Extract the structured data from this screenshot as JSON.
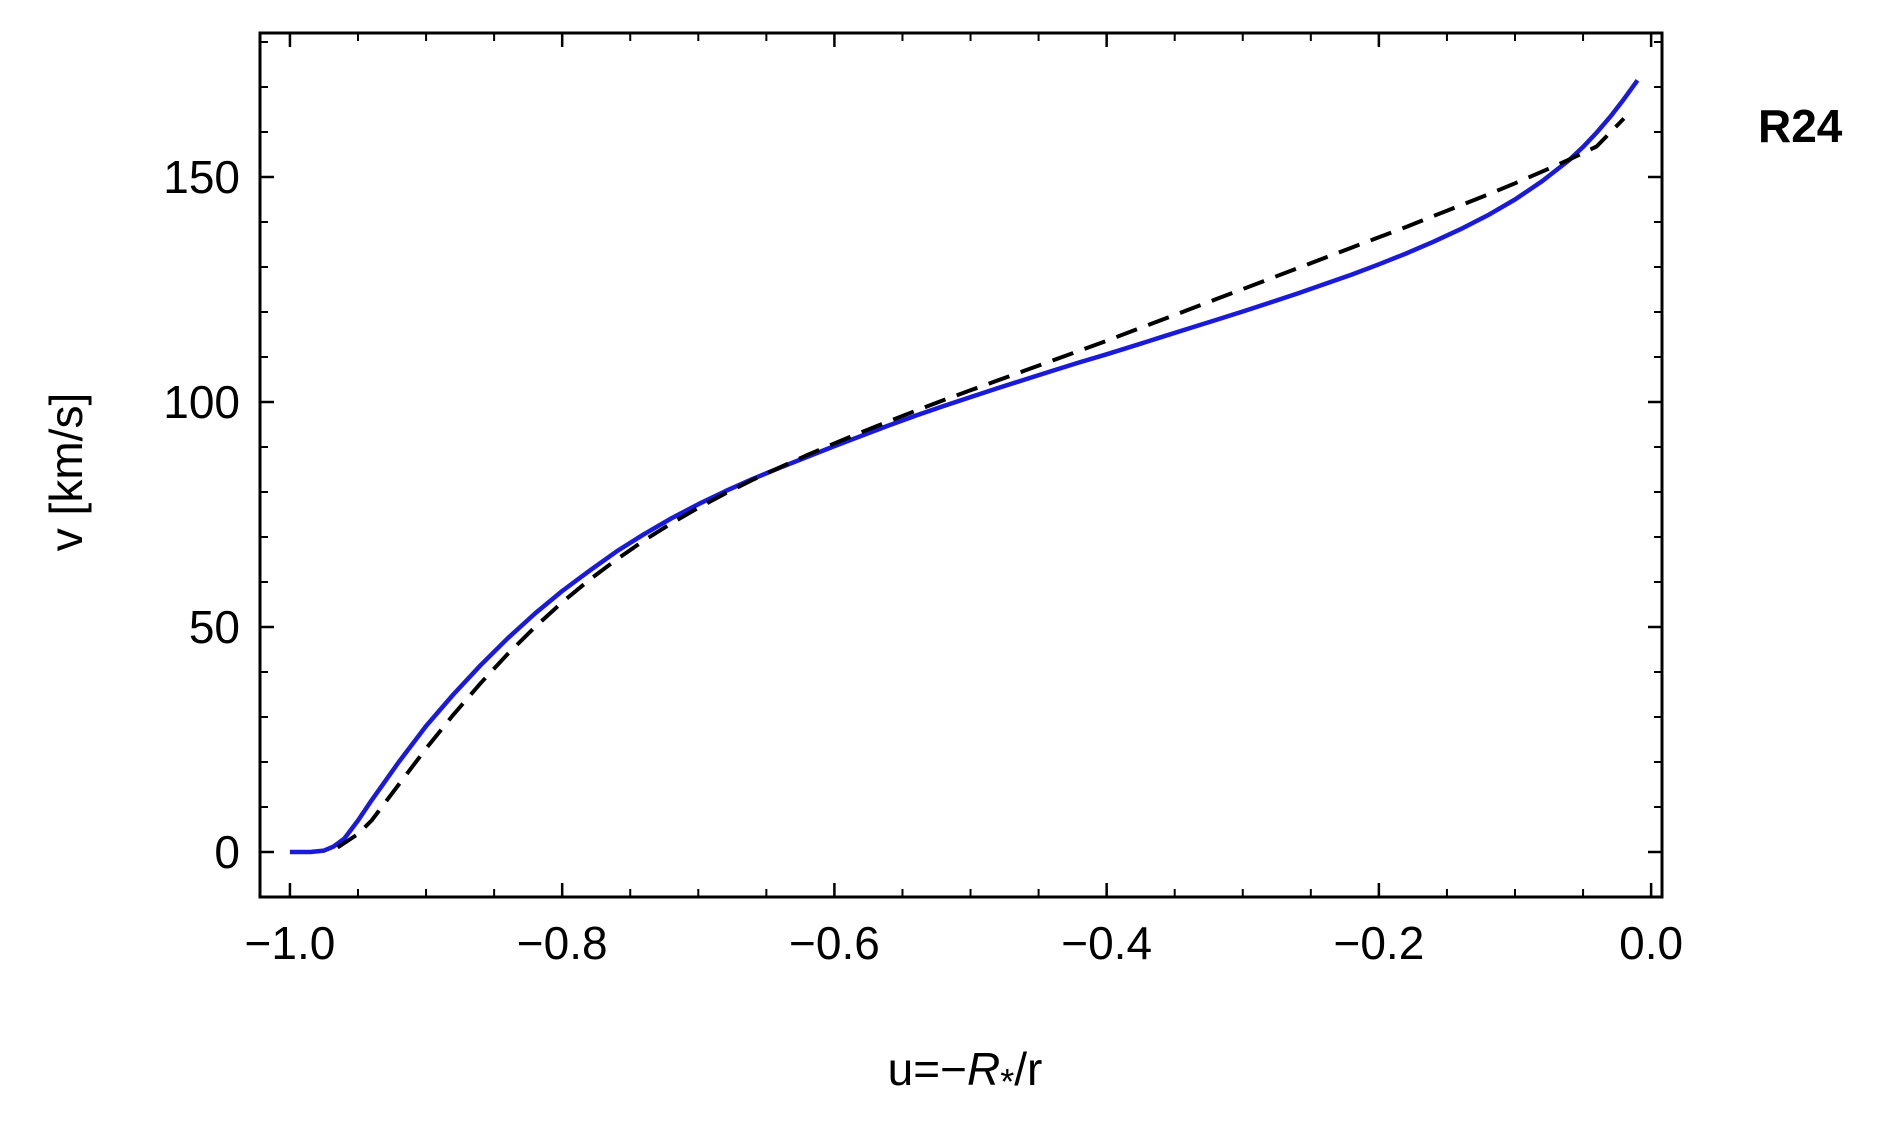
{
  "chart_data": {
    "type": "line",
    "title": "",
    "panel_label": "R24",
    "xlabel": {
      "prefix": "u=−",
      "symbol": "R",
      "subscript": "*",
      "suffix": "/r"
    },
    "ylabel": "v [km/s]",
    "xlim": [
      -1.022,
      0.008
    ],
    "ylim": [
      -10,
      182
    ],
    "xticks": [
      -1.0,
      -0.8,
      -0.6,
      -0.4,
      -0.2,
      0.0
    ],
    "xtick_labels": [
      "−1.0",
      "−0.8",
      "−0.6",
      "−0.4",
      "−0.2",
      "0.0"
    ],
    "xminor_step": 0.05,
    "yticks": [
      0,
      50,
      100,
      150
    ],
    "ytick_labels": [
      "0",
      "50",
      "100",
      "150"
    ],
    "yminor_step": 10,
    "grid": false,
    "legend": "none",
    "series": [
      {
        "color": "#1a1adb",
        "style": "solid",
        "x": [
          -1.0,
          -0.985,
          -0.975,
          -0.968,
          -0.96,
          -0.95,
          -0.94,
          -0.92,
          -0.9,
          -0.88,
          -0.86,
          -0.84,
          -0.82,
          -0.8,
          -0.78,
          -0.76,
          -0.74,
          -0.72,
          -0.7,
          -0.68,
          -0.66,
          -0.64,
          -0.62,
          -0.6,
          -0.58,
          -0.56,
          -0.54,
          -0.52,
          -0.5,
          -0.48,
          -0.46,
          -0.44,
          -0.42,
          -0.4,
          -0.38,
          -0.36,
          -0.34,
          -0.32,
          -0.3,
          -0.28,
          -0.26,
          -0.24,
          -0.22,
          -0.2,
          -0.18,
          -0.16,
          -0.14,
          -0.12,
          -0.1,
          -0.08,
          -0.06,
          -0.05,
          -0.04,
          -0.03,
          -0.02,
          -0.01
        ],
        "y": [
          0,
          0,
          0.3,
          1.2,
          3,
          7,
          11.5,
          20,
          28,
          35,
          41.5,
          47.5,
          53,
          58,
          62.5,
          66.8,
          70.6,
          74.1,
          77.3,
          80.2,
          82.9,
          85.4,
          87.8,
          90.2,
          92.5,
          94.8,
          97,
          99.1,
          101.1,
          103.1,
          105,
          106.9,
          108.8,
          110.6,
          112.5,
          114.4,
          116.3,
          118.2,
          120.1,
          122.1,
          124.1,
          126.2,
          128.3,
          130.6,
          133,
          135.6,
          138.4,
          141.5,
          145,
          149.1,
          153.8,
          156.7,
          159.9,
          163.4,
          167.3,
          171.5
        ]
      },
      {
        "color": "#000000",
        "style": "dashed",
        "x": [
          -0.965,
          -0.95,
          -0.94,
          -0.92,
          -0.9,
          -0.88,
          -0.86,
          -0.84,
          -0.82,
          -0.8,
          -0.78,
          -0.76,
          -0.74,
          -0.72,
          -0.7,
          -0.68,
          -0.66,
          -0.64,
          -0.62,
          -0.6,
          -0.58,
          -0.56,
          -0.54,
          -0.52,
          -0.5,
          -0.48,
          -0.46,
          -0.44,
          -0.42,
          -0.4,
          -0.38,
          -0.36,
          -0.34,
          -0.32,
          -0.3,
          -0.28,
          -0.26,
          -0.24,
          -0.22,
          -0.2,
          -0.18,
          -0.16,
          -0.14,
          -0.12,
          -0.1,
          -0.08,
          -0.06,
          -0.04,
          -0.02
        ],
        "y": [
          1,
          4,
          7,
          15,
          23,
          30.5,
          37.5,
          44,
          50,
          55.5,
          60.5,
          65,
          69.2,
          73,
          76.5,
          79.7,
          82.7,
          85.5,
          88.2,
          90.8,
          93.3,
          95.7,
          98.1,
          100.4,
          102.6,
          104.8,
          107,
          109.2,
          111.4,
          113.6,
          115.9,
          118.2,
          120.5,
          122.8,
          125.1,
          127.4,
          129.7,
          132,
          134.3,
          136.6,
          138.9,
          141.3,
          143.7,
          146.1,
          148.6,
          151.2,
          153.9,
          156.8,
          163
        ]
      }
    ]
  }
}
